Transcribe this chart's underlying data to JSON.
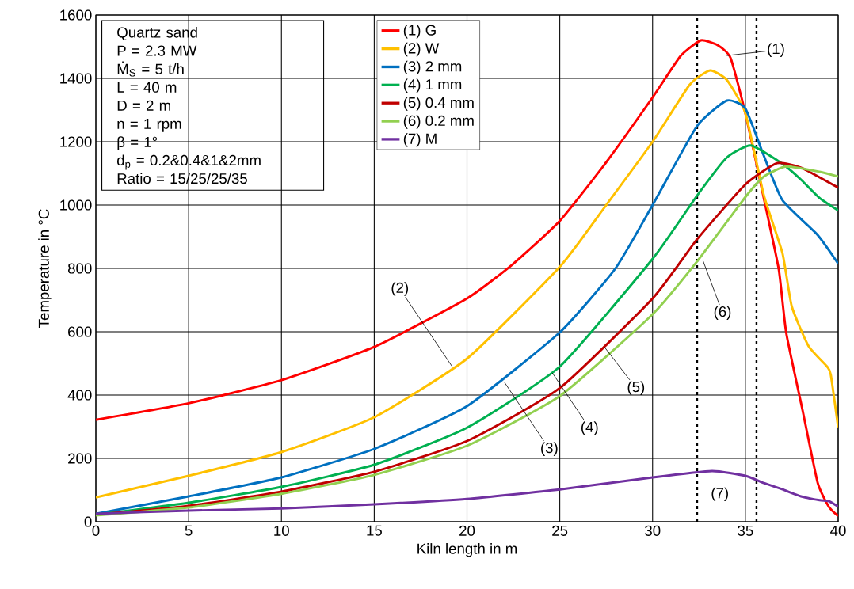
{
  "chart_data": {
    "type": "line",
    "xlabel": "Kiln length in m",
    "ylabel": "Temperature in °C",
    "xlim": [
      0,
      40
    ],
    "ylim": [
      0,
      1600
    ],
    "xticks": [
      0,
      5,
      10,
      15,
      20,
      25,
      30,
      35,
      40
    ],
    "yticks": [
      0,
      200,
      400,
      600,
      800,
      1000,
      1200,
      1400,
      1600
    ],
    "grid": true,
    "legend": "top",
    "line_style": "solid",
    "marker": "none",
    "series": [
      {
        "name": "(1) G",
        "color": "#ff0000",
        "x": [
          0,
          5,
          10,
          15,
          20,
          22.5,
          25,
          27.5,
          30,
          31.5,
          32.6,
          33.5,
          34.2,
          35,
          36,
          36.8,
          37.2,
          38.1,
          38.9,
          39.5,
          40
        ],
        "values": [
          322,
          374,
          447,
          552,
          705,
          815,
          950,
          1135,
          1340,
          1470,
          1520,
          1505,
          1465,
          1290,
          1020,
          797,
          597,
          347,
          122,
          47,
          18
        ]
      },
      {
        "name": "(2) W",
        "color": "#ffc000",
        "x": [
          0,
          5,
          10,
          15,
          20,
          25,
          27.5,
          30,
          32,
          33.1,
          34,
          35,
          36,
          37,
          37.5,
          38.4,
          39.4,
          39.6,
          40
        ],
        "values": [
          77,
          145,
          220,
          330,
          515,
          805,
          1000,
          1200,
          1380,
          1425,
          1395,
          1290,
          1030,
          848,
          680,
          555,
          490,
          465,
          298
        ]
      },
      {
        "name": "(3) 2 mm",
        "color": "#0070c0",
        "x": [
          0,
          5,
          10,
          15,
          20,
          25,
          28,
          30,
          32.4,
          34,
          35,
          36,
          37,
          38.9,
          40
        ],
        "values": [
          25,
          80,
          140,
          230,
          365,
          598,
          800,
          1000,
          1250,
          1330,
          1305,
          1155,
          1015,
          905,
          815
        ]
      },
      {
        "name": "(4) 1 mm",
        "color": "#00b050",
        "x": [
          0,
          5,
          10,
          15,
          20,
          25,
          30,
          32.4,
          34,
          35.3,
          37,
          38,
          39,
          40
        ],
        "values": [
          22,
          60,
          110,
          180,
          297,
          490,
          830,
          1030,
          1150,
          1188,
          1130,
          1080,
          1022,
          983
        ]
      },
      {
        "name": "(5) 0.4 mm",
        "color": "#c00000",
        "x": [
          0,
          5,
          10,
          15,
          20,
          25,
          30,
          32.4,
          35,
          36.7,
          38,
          40
        ],
        "values": [
          22,
          50,
          95,
          158,
          255,
          422,
          705,
          892,
          1065,
          1132,
          1118,
          1055
        ]
      },
      {
        "name": "(6) 0.2 mm",
        "color": "#92d050",
        "x": [
          0,
          5,
          10,
          15,
          20,
          25,
          30,
          32.4,
          35,
          36,
          37.2,
          39,
          40
        ],
        "values": [
          20,
          45,
          88,
          148,
          240,
          397,
          655,
          822,
          1025,
          1090,
          1122,
          1105,
          1090
        ]
      },
      {
        "name": "(7) M",
        "color": "#7030a0",
        "x": [
          0,
          5,
          10,
          15,
          20,
          25,
          30,
          33.2,
          35,
          36,
          37,
          38,
          39,
          39.5,
          40
        ],
        "values": [
          25,
          35,
          42,
          55,
          72,
          102,
          140,
          160,
          145,
          122,
          102,
          80,
          68,
          65,
          48
        ]
      }
    ],
    "ref_lines": [
      {
        "axis": "x",
        "value": 32.4,
        "color": "#000000",
        "line_style": "dashed"
      },
      {
        "axis": "x",
        "value": 35.6,
        "color": "#000000",
        "line_style": "dashed"
      }
    ],
    "annotations": [
      "Quartz sand",
      "P = 2.3 MW",
      "Ṁ$_{S}$ = 5 t/h",
      "L = 40 m",
      "D = 2 m",
      "n = 1 rpm",
      "β = 1°",
      "d$_{p}$ = 0.2&0.4&1&2mm",
      "Ratio = 15/25/25/35",
      {
        "text": "(1)",
        "x": 34.0,
        "y": 1472
      },
      {
        "text": "(2)",
        "x": 19.2,
        "y": 490
      },
      {
        "text": "(3)",
        "x": 22.0,
        "y": 442
      },
      {
        "text": "(4)",
        "x": 24.6,
        "y": 470
      },
      {
        "text": "(5)",
        "x": 27.4,
        "y": 552
      },
      {
        "text": "(6)",
        "x": 32.7,
        "y": 827
      },
      {
        "text": "(7)",
        "x": 33.2,
        "y": 160
      }
    ]
  }
}
